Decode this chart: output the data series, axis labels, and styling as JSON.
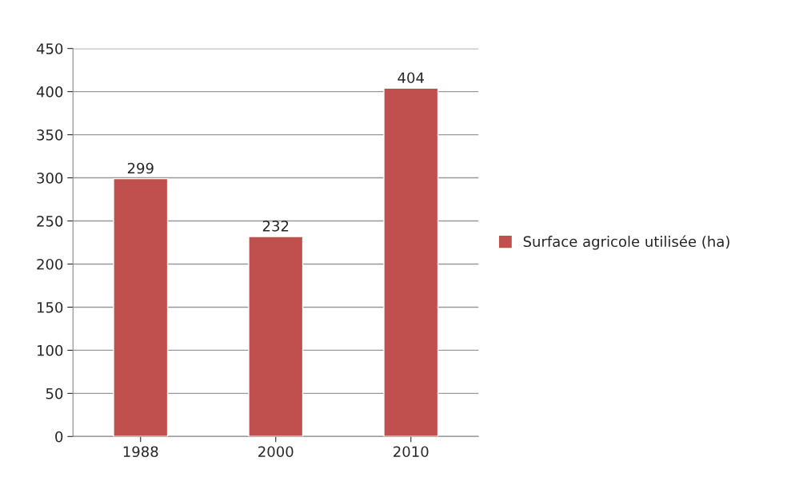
{
  "chart_data": {
    "type": "bar",
    "categories": [
      "1988",
      "2000",
      "2010"
    ],
    "series": [
      {
        "name": "Surface agricole utilisée (ha)",
        "color": "#c0504d",
        "values": [
          299,
          232,
          404
        ]
      }
    ],
    "ylim": [
      0,
      450
    ],
    "yticks": [
      0,
      50,
      100,
      150,
      200,
      250,
      300,
      350,
      400,
      450
    ],
    "grid": "y",
    "legend": "right",
    "data_labels": true
  }
}
